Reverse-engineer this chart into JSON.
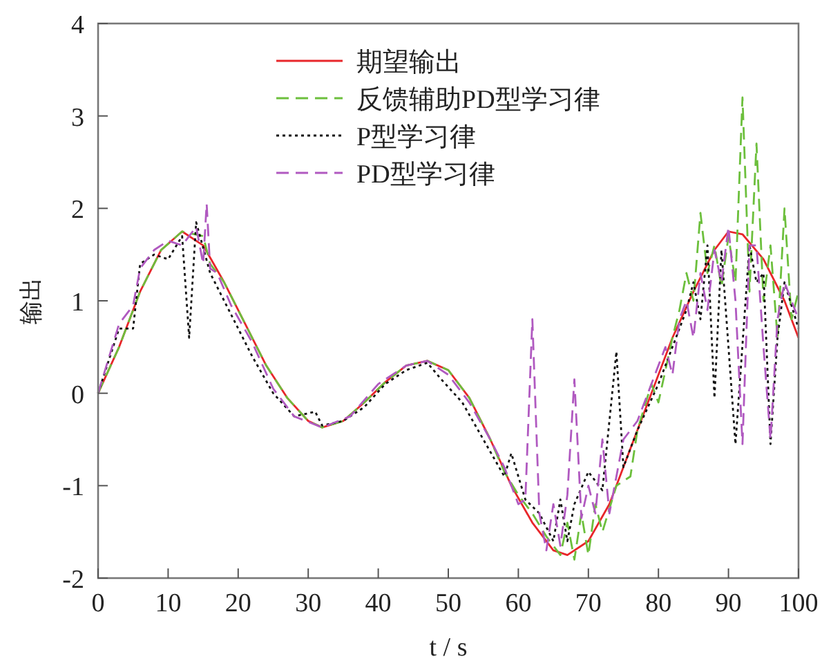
{
  "chart_data": {
    "type": "line",
    "xlabel": "t / s",
    "ylabel": "输出",
    "xlim": [
      0,
      100
    ],
    "ylim": [
      -2,
      4
    ],
    "xticks": [
      0,
      10,
      20,
      30,
      40,
      50,
      60,
      70,
      80,
      90,
      100
    ],
    "yticks": [
      -2,
      -1,
      0,
      1,
      2,
      3,
      4
    ],
    "grid": false,
    "legend": "top",
    "marker": "none",
    "series": [
      {
        "name": "期望输出",
        "color": "#e8262a",
        "line_style": "solid",
        "x": [
          0,
          3,
          6,
          9,
          12,
          15,
          18,
          21,
          24,
          27,
          30,
          32,
          35,
          38,
          41,
          44,
          47,
          50,
          53,
          56,
          59,
          62,
          65,
          67,
          70,
          73,
          76,
          79,
          82,
          85,
          88,
          90,
          92,
          95,
          98,
          100
        ],
        "values": [
          0,
          0.5,
          1.1,
          1.55,
          1.75,
          1.6,
          1.2,
          0.75,
          0.3,
          -0.05,
          -0.3,
          -0.37,
          -0.3,
          -0.1,
          0.12,
          0.3,
          0.35,
          0.25,
          -0.05,
          -0.5,
          -1.0,
          -1.4,
          -1.7,
          -1.75,
          -1.6,
          -1.2,
          -0.6,
          0,
          0.6,
          1.1,
          1.55,
          1.75,
          1.72,
          1.45,
          1.0,
          0.6
        ]
      },
      {
        "name": "反馈辅助PD型学习律",
        "color": "#6cbf3c",
        "line_style": "dashed",
        "x": [
          0,
          3,
          6,
          9,
          12,
          15,
          16,
          18,
          21,
          24,
          27,
          30,
          32,
          35,
          38,
          41,
          44,
          47,
          50,
          53,
          56,
          58,
          60,
          62,
          64,
          66,
          67,
          68,
          69,
          70,
          71,
          72,
          74,
          76,
          77,
          79,
          80,
          82,
          83,
          84,
          85,
          86,
          87,
          88,
          89,
          90,
          91,
          92,
          93,
          94,
          95,
          96,
          97,
          98,
          99,
          100
        ],
        "values": [
          0,
          0.5,
          1.1,
          1.55,
          1.75,
          1.7,
          1.4,
          1.2,
          0.75,
          0.3,
          -0.05,
          -0.3,
          -0.37,
          -0.3,
          -0.1,
          0.12,
          0.3,
          0.35,
          0.25,
          -0.05,
          -0.5,
          -0.85,
          -1.1,
          -1.3,
          -1.55,
          -1.75,
          -1.4,
          -1.8,
          -1.3,
          -1.75,
          -1.2,
          -1.5,
          -1.0,
          -0.9,
          -0.4,
          0.1,
          -0.1,
          0.6,
          0.9,
          1.3,
          1.0,
          1.95,
          1.3,
          1.6,
          1.15,
          1.7,
          1.2,
          3.2,
          1.1,
          2.7,
          1.0,
          1.6,
          0.6,
          2.0,
          0.8,
          1.1
        ]
      },
      {
        "name": "P型学习律",
        "color": "#111111",
        "line_style": "dotted",
        "x": [
          0,
          3,
          5,
          6,
          8,
          10,
          12,
          13,
          14,
          16,
          18,
          20,
          22,
          25,
          28,
          31,
          32,
          35,
          38,
          41,
          44,
          47,
          49,
          52,
          55,
          58,
          59,
          61,
          63,
          65,
          66,
          67,
          68,
          70,
          72,
          74,
          75,
          77,
          80,
          82,
          84,
          85,
          86,
          87,
          88,
          89,
          91,
          93,
          94,
          95,
          96,
          97,
          98,
          100
        ],
        "values": [
          0,
          0.7,
          0.7,
          1.4,
          1.5,
          1.45,
          1.7,
          0.6,
          1.85,
          1.3,
          1.0,
          0.7,
          0.4,
          0.0,
          -0.25,
          -0.2,
          -0.35,
          -0.3,
          -0.15,
          0.1,
          0.25,
          0.33,
          0.15,
          -0.1,
          -0.5,
          -0.9,
          -0.65,
          -1.15,
          -1.3,
          -1.6,
          -1.15,
          -1.6,
          -1.2,
          -0.85,
          -1.05,
          0.45,
          -0.8,
          -0.4,
          0.1,
          0.5,
          0.9,
          1.2,
          0.8,
          1.6,
          -0.05,
          1.55,
          -0.55,
          1.6,
          1.2,
          1.3,
          -0.55,
          0.6,
          1.2,
          0.7
        ]
      },
      {
        "name": "PD型学习律",
        "color": "#b059c0",
        "line_style": "dashed",
        "x": [
          0,
          3,
          5,
          6,
          8,
          10,
          12,
          14,
          15,
          15.5,
          16,
          17,
          19,
          22,
          25,
          28,
          32,
          36,
          40,
          44,
          47,
          50,
          53,
          56,
          58,
          60,
          61,
          62,
          63,
          64,
          65,
          66,
          67,
          68,
          69,
          70,
          71,
          72,
          73,
          75,
          77,
          79,
          81,
          82,
          83,
          84,
          85,
          86,
          87,
          88,
          89,
          90,
          91,
          92,
          93,
          94,
          95,
          96,
          97,
          98,
          100
        ],
        "values": [
          0,
          0.75,
          0.95,
          1.35,
          1.55,
          1.65,
          1.6,
          1.8,
          1.4,
          2.05,
          1.35,
          1.3,
          0.95,
          0.55,
          0.05,
          -0.25,
          -0.37,
          -0.25,
          0.1,
          0.3,
          0.35,
          0.2,
          -0.1,
          -0.5,
          -0.8,
          -1.2,
          -1.15,
          0.8,
          -1.3,
          -1.7,
          -1.2,
          -1.65,
          -1.1,
          0.15,
          -1.35,
          -1.0,
          -1.3,
          -0.5,
          -1.3,
          -0.5,
          -0.3,
          0.1,
          0.5,
          0.2,
          0.8,
          1.0,
          0.6,
          1.3,
          0.9,
          1.55,
          1.2,
          1.8,
          1.0,
          -0.55,
          1.6,
          1.6,
          0.5,
          -0.5,
          0.8,
          1.2,
          0.8
        ]
      }
    ]
  }
}
